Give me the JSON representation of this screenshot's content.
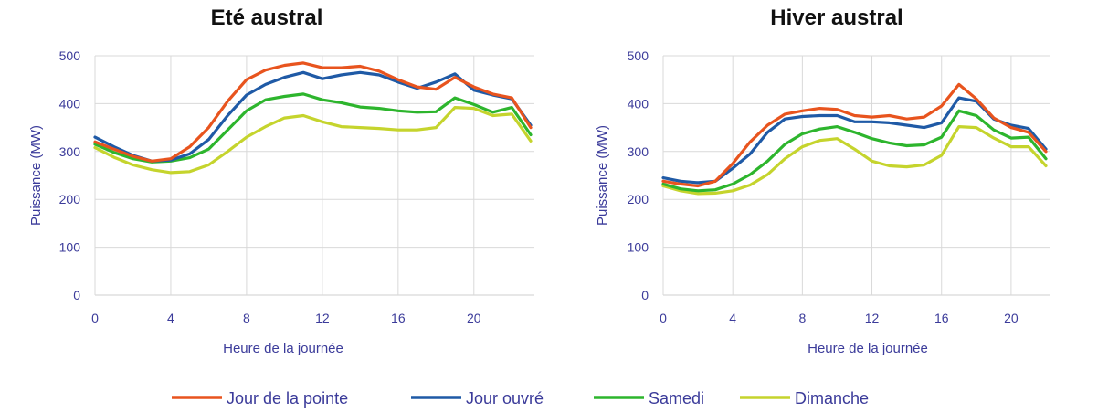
{
  "chart_data": [
    {
      "type": "line",
      "title": "Eté austral",
      "xlabel": "Heure de la journée",
      "ylabel": "Puissance (MW)",
      "xlim": [
        0,
        23
      ],
      "ylim": [
        0,
        500
      ],
      "xticks": [
        0,
        4,
        8,
        12,
        16,
        20
      ],
      "yticks": [
        0,
        100,
        200,
        300,
        400,
        500
      ],
      "grid": true,
      "x": [
        0,
        1,
        2,
        3,
        4,
        5,
        6,
        7,
        8,
        9,
        10,
        11,
        12,
        13,
        14,
        15,
        16,
        17,
        18,
        19,
        20,
        21,
        22,
        23
      ],
      "series": [
        {
          "name": "Jour de la pointe",
          "color": "#e8541e",
          "values": [
            320,
            305,
            290,
            280,
            285,
            310,
            350,
            405,
            450,
            470,
            480,
            485,
            475,
            475,
            478,
            468,
            450,
            435,
            430,
            455,
            435,
            420,
            412,
            350
          ]
        },
        {
          "name": "Jour ouvré",
          "color": "#1f5aa6",
          "values": [
            330,
            310,
            292,
            280,
            282,
            295,
            325,
            375,
            418,
            440,
            455,
            465,
            452,
            460,
            465,
            460,
            445,
            432,
            445,
            462,
            428,
            418,
            410,
            355
          ]
        },
        {
          "name": "Samedi",
          "color": "#2db52d",
          "values": [
            315,
            298,
            285,
            278,
            280,
            287,
            305,
            345,
            385,
            408,
            415,
            420,
            408,
            402,
            393,
            390,
            385,
            382,
            383,
            412,
            398,
            382,
            392,
            335
          ]
        },
        {
          "name": "Dimanche",
          "color": "#c5d42d",
          "values": [
            308,
            288,
            272,
            262,
            256,
            258,
            272,
            300,
            330,
            352,
            370,
            375,
            362,
            352,
            350,
            348,
            345,
            345,
            350,
            392,
            390,
            375,
            378,
            322
          ]
        }
      ]
    },
    {
      "type": "line",
      "title": "Hiver austral",
      "xlabel": "Heure de la journée",
      "ylabel": "Puissance (MW)",
      "xlim": [
        0,
        23
      ],
      "ylim": [
        0,
        500
      ],
      "xticks": [
        0,
        4,
        8,
        12,
        16,
        20
      ],
      "yticks": [
        0,
        100,
        200,
        300,
        400,
        500
      ],
      "grid": true,
      "x": [
        0,
        1,
        2,
        3,
        4,
        5,
        6,
        7,
        8,
        9,
        10,
        11,
        12,
        13,
        14,
        15,
        16,
        17,
        18,
        19,
        20,
        21,
        22
      ],
      "series": [
        {
          "name": "Jour de la pointe",
          "color": "#e8541e",
          "values": [
            238,
            232,
            228,
            238,
            275,
            320,
            355,
            378,
            385,
            390,
            388,
            375,
            372,
            375,
            368,
            372,
            395,
            440,
            410,
            370,
            350,
            340,
            300
          ]
        },
        {
          "name": "Jour ouvré",
          "color": "#1f5aa6",
          "values": [
            245,
            238,
            235,
            238,
            265,
            295,
            340,
            368,
            373,
            375,
            375,
            362,
            362,
            360,
            355,
            350,
            360,
            412,
            405,
            368,
            355,
            348,
            305
          ]
        },
        {
          "name": "Samedi",
          "color": "#2db52d",
          "values": [
            232,
            222,
            218,
            220,
            232,
            252,
            280,
            315,
            337,
            347,
            352,
            340,
            327,
            318,
            312,
            314,
            330,
            385,
            375,
            345,
            328,
            330,
            285
          ]
        },
        {
          "name": "Dimanche",
          "color": "#c5d42d",
          "values": [
            228,
            218,
            212,
            213,
            218,
            230,
            252,
            285,
            310,
            323,
            327,
            305,
            280,
            270,
            268,
            272,
            292,
            352,
            350,
            328,
            310,
            310,
            270
          ]
        }
      ]
    }
  ],
  "legend": {
    "position": "bottom",
    "items": [
      "Jour de la pointe",
      "Jour ouvré",
      "Samedi",
      "Dimanche"
    ]
  }
}
